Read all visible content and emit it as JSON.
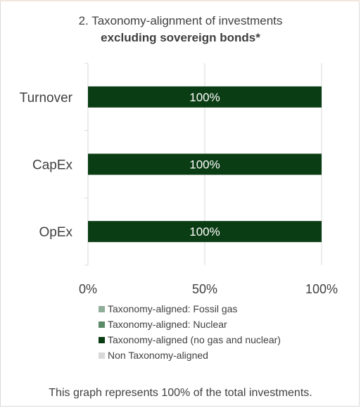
{
  "chart_data": {
    "type": "bar",
    "orientation": "horizontal",
    "stacked": true,
    "title": "2. Taxonomy-alignment of investments",
    "subtitle": "excluding sovereign bonds*",
    "categories": [
      "Turnover",
      "CapEx",
      "OpEx"
    ],
    "series": [
      {
        "name": "Taxonomy-aligned: Fossil gas",
        "color": "#8fad99",
        "values": [
          0,
          0,
          0
        ]
      },
      {
        "name": "Taxonomy-aligned: Nuclear",
        "color": "#5b8a66",
        "values": [
          0,
          0,
          0
        ]
      },
      {
        "name": "Taxonomy-aligned (no gas and nuclear)",
        "color": "#0b3d14",
        "values": [
          100,
          100,
          100
        ]
      },
      {
        "name": "Non Taxonomy-aligned",
        "color": "#d9d9d9",
        "values": [
          0,
          0,
          0
        ]
      }
    ],
    "data_labels": [
      "100%",
      "100%",
      "100%"
    ],
    "xlim": [
      0,
      100
    ],
    "x_ticks": [
      "0%",
      "50%",
      "100%"
    ],
    "x_tick_values": [
      0,
      50,
      100
    ],
    "grid": true,
    "legend_position": "bottom"
  },
  "footnote": "This graph represents 100% of the total investments."
}
